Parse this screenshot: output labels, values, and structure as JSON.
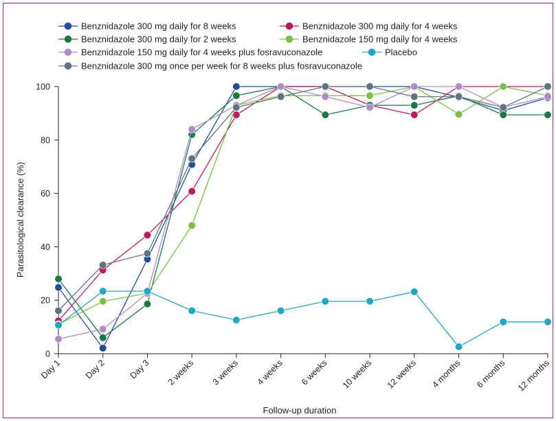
{
  "chart_data": {
    "type": "line",
    "xlabel": "Follow-up duration",
    "ylabel": "Parasitological clearance (%)",
    "ylim": [
      0,
      100
    ],
    "yticks": [
      0,
      20,
      40,
      60,
      80,
      100
    ],
    "categories": [
      "Day 1",
      "Day 2",
      "Day 3",
      "2 weeks",
      "3 weeks",
      "4 weeks",
      "6 weeks",
      "10 weeks",
      "12 weeks",
      "4 months",
      "6 months",
      "12 months"
    ],
    "grid": false,
    "legend_position": "top",
    "series": [
      {
        "name": "Benznidazole 300 mg daily for 8 weeks",
        "color": "#1f4e9c",
        "values": [
          24.8,
          2.1,
          35.4,
          70.8,
          100,
          100,
          100,
          100,
          100,
          96,
          91,
          95.8
        ]
      },
      {
        "name": "Benznidazole 300 mg daily for 4 weeks",
        "color": "#c2185b",
        "values": [
          12.3,
          31.3,
          44.4,
          60.8,
          89.4,
          100,
          100,
          93,
          89.4,
          100,
          100,
          100
        ]
      },
      {
        "name": "Benznidazole 300 mg daily for 2 weeks",
        "color": "#1a7a46",
        "values": [
          28,
          6,
          18.6,
          82,
          96.6,
          100,
          89.4,
          93,
          93,
          96.5,
          89.4,
          89.4
        ]
      },
      {
        "name": "Benznidazole 150 mg daily for 4 weeks",
        "color": "#7cbf42",
        "values": [
          11,
          19.6,
          22.6,
          48,
          93,
          96.6,
          96.6,
          96.6,
          100,
          89.6,
          100,
          96.6
        ]
      },
      {
        "name": "Benznidazole 150 mg daily for 4 weeks plus fosravuconazole",
        "color": "#b08ac8",
        "values": [
          5.5,
          9.2,
          22.6,
          84,
          93,
          100,
          96.2,
          92.2,
          100,
          100,
          92.2,
          96.2
        ]
      },
      {
        "name": "Placebo",
        "color": "#1ea6c8",
        "values": [
          10.7,
          23.4,
          23.4,
          16.1,
          12.6,
          16.1,
          19.6,
          19.6,
          23.2,
          2.6,
          11.9,
          11.9
        ]
      },
      {
        "name": "Benznidazole 300 mg once per week for 8 weeks plus fosravuconazole",
        "color": "#5f7480",
        "values": [
          16.1,
          33.2,
          37.5,
          73,
          92.2,
          96.2,
          100,
          100,
          96.2,
          96.2,
          92.2,
          100
        ]
      }
    ]
  }
}
